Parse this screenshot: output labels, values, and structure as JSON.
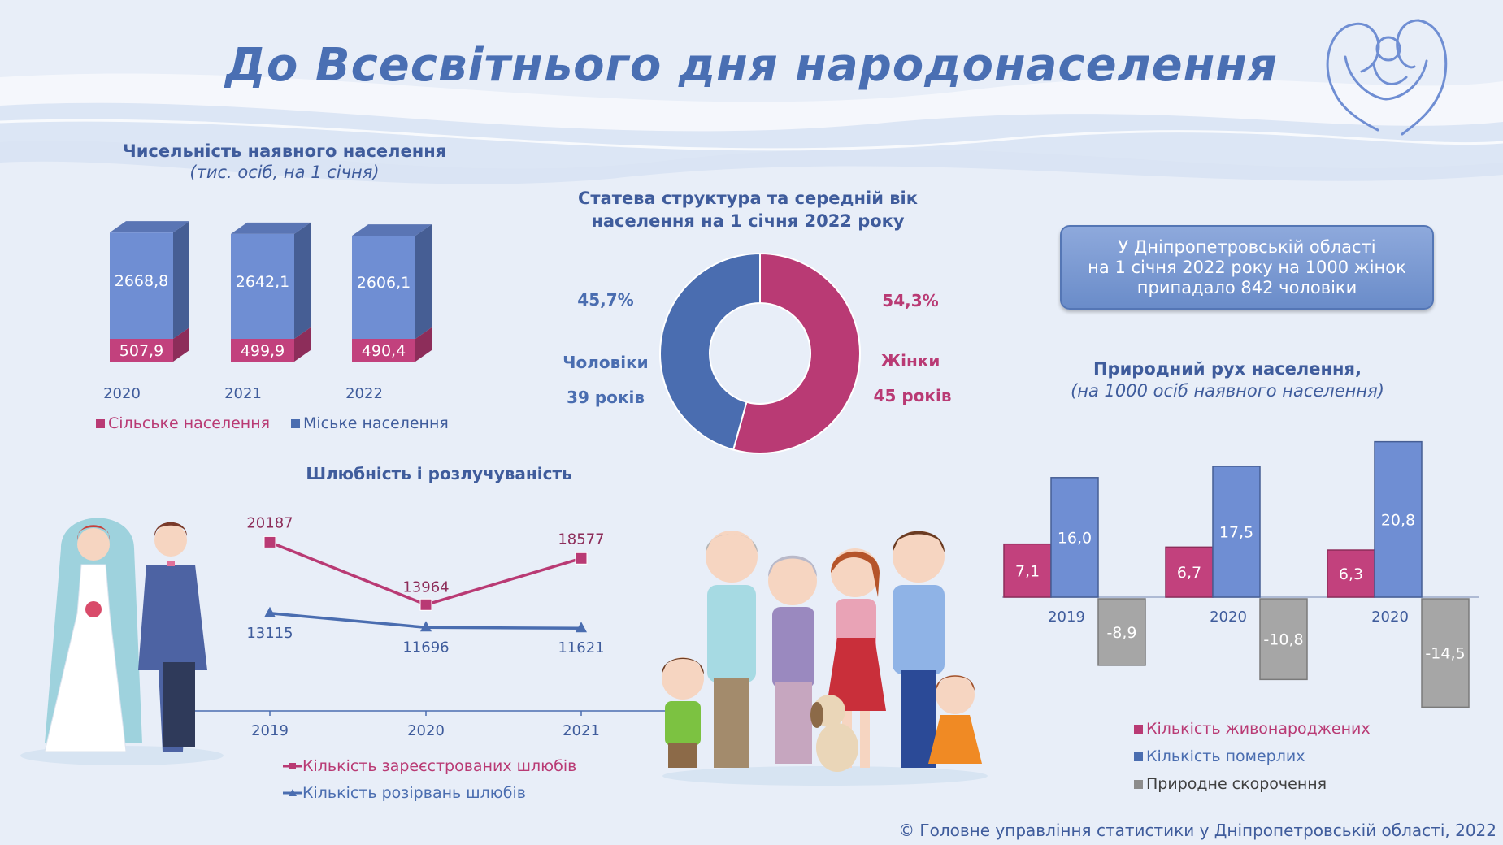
{
  "title": "До Всесвітнього дня народонаселення",
  "population": {
    "title": "Чисельність наявного населення",
    "subtitle": "(тис. осіб, на 1 січня)",
    "legend_rural": "Сільське населення",
    "legend_urban": "Міське населення"
  },
  "sex_structure": {
    "title_line1": "Статева структура та середній вік",
    "title_line2": "населення на 1 січня 2022 року",
    "men_pct": "45,7%",
    "men_label": "Чоловіки",
    "men_age": "39 років",
    "women_pct": "54,3%",
    "women_label": "Жінки",
    "women_age": "45 років"
  },
  "info_box": {
    "line1": "У Дніпропетровській області",
    "line2": "на 1 січня 2022 року на 1000 жінок",
    "line3": "припадало 842 чоловіки"
  },
  "natural": {
    "title": "Природний рух населення,",
    "subtitle": "(на 1000 осіб наявного населення)",
    "legend_births": "Кількість живонароджених",
    "legend_deaths": "Кількість померлих",
    "legend_decrease": "Природне скорочення"
  },
  "marriage": {
    "title": "Шлюбність і розлучуваність",
    "legend_marriages": "Кількість зареєстрованих шлюбів",
    "legend_divorces": "Кількість розірвань шлюбів"
  },
  "footer": "© Головне управління статистики у Дніпропетровській області, 2022",
  "colors": {
    "title": "#4a6fb3",
    "urban": "#6f8ed3",
    "rural": "#c2417d",
    "men": "#4a6db0",
    "women": "#b93a74",
    "births": "#c2417d",
    "deaths": "#6f8ed3",
    "decrease": "#a6a6a6",
    "marriages": "#b93a74",
    "divorces": "#4a6db0"
  },
  "chart_data": [
    {
      "type": "bar",
      "categories": [
        "2020",
        "2021",
        "2022"
      ],
      "series": [
        {
          "name": "Міське населення",
          "values": [
            2668.8,
            2642.1,
            2606.1
          ],
          "labels": [
            "2668,8",
            "2642,1",
            "2606,1"
          ]
        },
        {
          "name": "Сільське населення",
          "values": [
            507.9,
            499.9,
            490.4
          ],
          "labels": [
            "507,9",
            "499,9",
            "490,4"
          ]
        }
      ],
      "stacked": true,
      "title": "Чисельність наявного населення",
      "subtitle": "(тис. осіб, на 1 січня)"
    },
    {
      "type": "pie",
      "donut": true,
      "labels": [
        "Чоловіки",
        "Жінки"
      ],
      "values": [
        45.7,
        54.3
      ],
      "title": "Статева структура та середній вік населення на 1 січня 2022 року"
    },
    {
      "type": "bar",
      "categories": [
        "2019",
        "2020",
        "2020"
      ],
      "series": [
        {
          "name": "Кількість живонароджених",
          "values": [
            7.1,
            6.7,
            6.3
          ],
          "labels": [
            "7,1",
            "6,7",
            "6,3"
          ]
        },
        {
          "name": "Кількість померлих",
          "values": [
            16.0,
            17.5,
            20.8
          ],
          "labels": [
            "16,0",
            "17,5",
            "20,8"
          ]
        },
        {
          "name": "Природне скорочення",
          "values": [
            -8.9,
            -10.8,
            -14.5
          ],
          "labels": [
            "-8,9",
            "-10,8",
            "-14,5"
          ]
        }
      ],
      "title": "Природний рух населення,",
      "subtitle": "(на 1000 осіб наявного населення)"
    },
    {
      "type": "line",
      "x": [
        "2019",
        "2020",
        "2021"
      ],
      "series": [
        {
          "name": "Кількість зареєстрованих шлюбів",
          "values": [
            20187,
            13964,
            18577
          ]
        },
        {
          "name": "Кількість розірвань шлюбів",
          "values": [
            13115,
            11696,
            11621
          ]
        }
      ],
      "title": "Шлюбність і розлучуваність"
    }
  ]
}
